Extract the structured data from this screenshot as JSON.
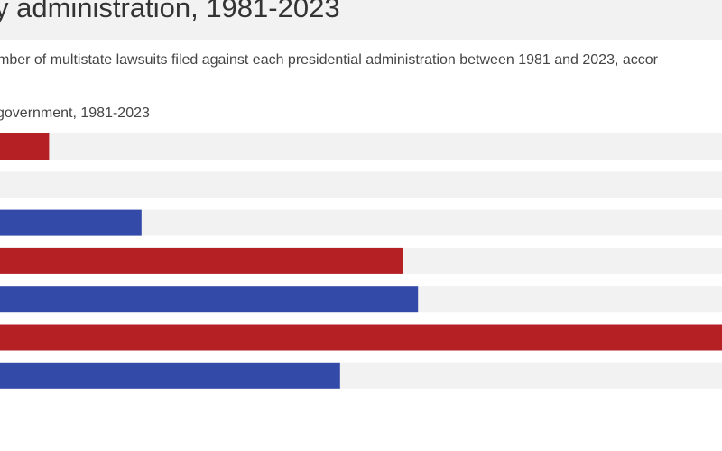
{
  "header": {
    "title": "y administration, 1981-2023",
    "subtitle": "mber of multistate lawsuits filed against each presidential administration between 1981 and 2023, accor"
  },
  "panel": {
    "heading": "government, 1981-2023"
  },
  "colors": {
    "republican": "#b52025",
    "democrat": "#344aa8",
    "track": "#f2f2f2",
    "title_band": "#f2f2f2"
  },
  "chart_data": {
    "type": "bar",
    "orientation": "horizontal",
    "title": "",
    "xlabel": "",
    "ylabel": "",
    "xlim": [
      0,
      100
    ],
    "grid": false,
    "values": [
      6.8,
      0,
      19.6,
      55.8,
      57.9,
      100,
      47.1
    ],
    "bar_colors": [
      "#b52025",
      "#b52025",
      "#344aa8",
      "#b52025",
      "#344aa8",
      "#b52025",
      "#344aa8"
    ]
  }
}
